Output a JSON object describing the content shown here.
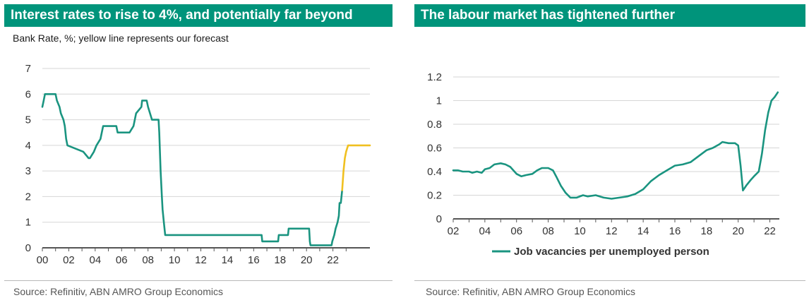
{
  "colors": {
    "title_bar": "#00947b",
    "series": "#1a9480",
    "forecast": "#f0c020",
    "grid": "#d6d6d6",
    "axis": "#555555"
  },
  "charts": {
    "left": {
      "title": "Interest rates to rise to 4%, and potentially far beyond",
      "subtitle": "Bank Rate, %; yellow line represents our forecast",
      "source": "Source: Refinitiv, ABN AMRO Group Economics"
    },
    "right": {
      "title": "The labour market has tightened further",
      "source": "Source: Refinitiv, ABN AMRO Group Economics",
      "legend_label": "Job vacancies per unemployed person"
    }
  },
  "chart_data": [
    {
      "type": "line",
      "title": "Interest rates to rise to 4%, and potentially far beyond",
      "subtitle": "Bank Rate, %; yellow line represents our forecast",
      "xlabel": "",
      "ylabel": "",
      "xlim": [
        2000,
        2024.8
      ],
      "ylim": [
        0,
        7
      ],
      "x_ticks": [
        2000,
        2002,
        2004,
        2006,
        2008,
        2010,
        2012,
        2014,
        2016,
        2018,
        2020,
        2022
      ],
      "x_tick_labels": [
        "00",
        "02",
        "04",
        "06",
        "08",
        "10",
        "12",
        "14",
        "16",
        "18",
        "20",
        "22"
      ],
      "y_ticks": [
        0,
        1,
        2,
        3,
        4,
        5,
        6,
        7
      ],
      "y_tick_labels": [
        "0",
        "1",
        "2",
        "3",
        "4",
        "5",
        "6",
        "7"
      ],
      "grid": "horizontal",
      "series": [
        {
          "color": "#1a9480",
          "points": [
            [
              2000.0,
              5.5
            ],
            [
              2000.1,
              5.75
            ],
            [
              2000.2,
              6.0
            ],
            [
              2001.0,
              6.0
            ],
            [
              2001.1,
              5.75
            ],
            [
              2001.3,
              5.5
            ],
            [
              2001.4,
              5.25
            ],
            [
              2001.6,
              5.0
            ],
            [
              2001.7,
              4.75
            ],
            [
              2001.8,
              4.25
            ],
            [
              2001.9,
              4.0
            ],
            [
              2003.1,
              3.75
            ],
            [
              2003.5,
              3.5
            ],
            [
              2003.6,
              3.5
            ],
            [
              2003.9,
              3.75
            ],
            [
              2004.1,
              4.0
            ],
            [
              2004.4,
              4.25
            ],
            [
              2004.5,
              4.5
            ],
            [
              2004.6,
              4.75
            ],
            [
              2005.6,
              4.75
            ],
            [
              2005.7,
              4.5
            ],
            [
              2006.6,
              4.5
            ],
            [
              2006.9,
              4.75
            ],
            [
              2007.1,
              5.25
            ],
            [
              2007.5,
              5.5
            ],
            [
              2007.55,
              5.75
            ],
            [
              2007.9,
              5.75
            ],
            [
              2008.0,
              5.5
            ],
            [
              2008.3,
              5.0
            ],
            [
              2008.8,
              5.0
            ],
            [
              2008.85,
              4.5
            ],
            [
              2008.95,
              3.0
            ],
            [
              2009.05,
              2.0
            ],
            [
              2009.1,
              1.5
            ],
            [
              2009.2,
              1.0
            ],
            [
              2009.3,
              0.5
            ],
            [
              2016.6,
              0.5
            ],
            [
              2016.65,
              0.25
            ],
            [
              2017.85,
              0.25
            ],
            [
              2017.9,
              0.5
            ],
            [
              2018.6,
              0.5
            ],
            [
              2018.65,
              0.75
            ],
            [
              2020.2,
              0.75
            ],
            [
              2020.25,
              0.25
            ],
            [
              2020.3,
              0.1
            ],
            [
              2021.9,
              0.1
            ],
            [
              2021.95,
              0.25
            ],
            [
              2022.1,
              0.5
            ],
            [
              2022.2,
              0.75
            ],
            [
              2022.35,
              1.0
            ],
            [
              2022.45,
              1.25
            ],
            [
              2022.5,
              1.75
            ],
            [
              2022.6,
              1.75
            ],
            [
              2022.7,
              2.25
            ]
          ]
        },
        {
          "color": "#f0c020",
          "points": [
            [
              2022.7,
              2.25
            ],
            [
              2022.8,
              3.0
            ],
            [
              2022.9,
              3.5
            ],
            [
              2023.0,
              3.75
            ],
            [
              2023.15,
              4.0
            ],
            [
              2024.8,
              4.0
            ]
          ]
        }
      ]
    },
    {
      "type": "line",
      "title": "The labour market has tightened further",
      "xlabel": "",
      "ylabel": "",
      "xlim": [
        2002,
        2022.6
      ],
      "ylim": [
        0,
        1.2
      ],
      "x_ticks": [
        2002,
        2004,
        2006,
        2008,
        2010,
        2012,
        2014,
        2016,
        2018,
        2020,
        2022
      ],
      "x_tick_labels": [
        "02",
        "04",
        "06",
        "08",
        "10",
        "12",
        "14",
        "16",
        "18",
        "20",
        "22"
      ],
      "y_ticks": [
        0,
        0.2,
        0.4,
        0.6,
        0.8,
        1.0,
        1.2
      ],
      "y_tick_labels": [
        "0",
        "0.2",
        "0.4",
        "0.6",
        "0.8",
        "1",
        "1.2"
      ],
      "grid": "horizontal",
      "legend": "bottom",
      "series": [
        {
          "name": "Job vacancies per unemployed person",
          "color": "#1a9480",
          "points": [
            [
              2002.0,
              0.41
            ],
            [
              2002.3,
              0.41
            ],
            [
              2002.6,
              0.4
            ],
            [
              2003.0,
              0.4
            ],
            [
              2003.2,
              0.39
            ],
            [
              2003.5,
              0.4
            ],
            [
              2003.8,
              0.39
            ],
            [
              2004.0,
              0.42
            ],
            [
              2004.3,
              0.43
            ],
            [
              2004.6,
              0.46
            ],
            [
              2005.0,
              0.47
            ],
            [
              2005.3,
              0.46
            ],
            [
              2005.6,
              0.44
            ],
            [
              2005.8,
              0.41
            ],
            [
              2006.0,
              0.38
            ],
            [
              2006.3,
              0.36
            ],
            [
              2006.6,
              0.37
            ],
            [
              2007.0,
              0.38
            ],
            [
              2007.3,
              0.41
            ],
            [
              2007.6,
              0.43
            ],
            [
              2008.0,
              0.43
            ],
            [
              2008.3,
              0.41
            ],
            [
              2008.5,
              0.36
            ],
            [
              2008.8,
              0.28
            ],
            [
              2009.1,
              0.22
            ],
            [
              2009.4,
              0.18
            ],
            [
              2009.8,
              0.18
            ],
            [
              2010.2,
              0.2
            ],
            [
              2010.5,
              0.19
            ],
            [
              2011.0,
              0.2
            ],
            [
              2011.5,
              0.18
            ],
            [
              2012.0,
              0.17
            ],
            [
              2012.5,
              0.18
            ],
            [
              2013.0,
              0.19
            ],
            [
              2013.5,
              0.21
            ],
            [
              2014.0,
              0.25
            ],
            [
              2014.5,
              0.32
            ],
            [
              2015.0,
              0.37
            ],
            [
              2015.5,
              0.41
            ],
            [
              2016.0,
              0.45
            ],
            [
              2016.5,
              0.46
            ],
            [
              2017.0,
              0.48
            ],
            [
              2017.5,
              0.53
            ],
            [
              2018.0,
              0.58
            ],
            [
              2018.4,
              0.6
            ],
            [
              2018.8,
              0.63
            ],
            [
              2019.0,
              0.65
            ],
            [
              2019.4,
              0.64
            ],
            [
              2019.8,
              0.64
            ],
            [
              2020.0,
              0.62
            ],
            [
              2020.15,
              0.45
            ],
            [
              2020.3,
              0.24
            ],
            [
              2020.5,
              0.28
            ],
            [
              2020.8,
              0.33
            ],
            [
              2021.0,
              0.36
            ],
            [
              2021.3,
              0.4
            ],
            [
              2021.5,
              0.55
            ],
            [
              2021.7,
              0.75
            ],
            [
              2021.9,
              0.9
            ],
            [
              2022.1,
              1.0
            ],
            [
              2022.3,
              1.03
            ],
            [
              2022.5,
              1.07
            ]
          ]
        }
      ]
    }
  ]
}
